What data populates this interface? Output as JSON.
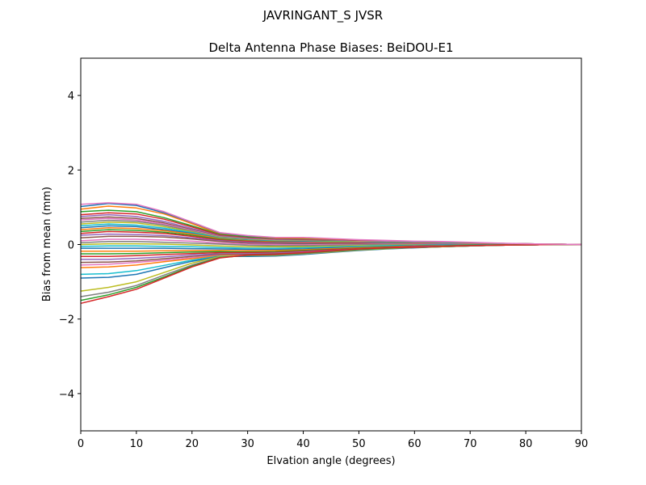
{
  "chart_data": {
    "type": "line",
    "suptitle": "JAVRINGANT_S    JVSR",
    "title": "Delta Antenna Phase Biases: BeiDOU-E1",
    "xlabel": "Elvation angle (degrees)",
    "ylabel": "Bias from mean (mm)",
    "xlim": [
      0,
      90
    ],
    "ylim": [
      -5,
      5
    ],
    "xticks": [
      0,
      10,
      20,
      30,
      40,
      50,
      60,
      70,
      80,
      90
    ],
    "yticks": [
      -4,
      -2,
      0,
      2,
      4
    ],
    "x": [
      0,
      5,
      10,
      15,
      20,
      25,
      30,
      35,
      40,
      45,
      50,
      55,
      60,
      65,
      70,
      75,
      80,
      85,
      90
    ],
    "grid": false,
    "legend": "none",
    "series": [
      {
        "color": "#1f77b4",
        "values": [
          1.02,
          1.1,
          1.05,
          0.85,
          0.58,
          0.3,
          0.22,
          0.18,
          0.18,
          0.15,
          0.12,
          0.1,
          0.08,
          0.07,
          0.05,
          0.03,
          0.02,
          0.01,
          0.0
        ]
      },
      {
        "color": "#ff7f0e",
        "values": [
          0.95,
          1.03,
          0.98,
          0.82,
          0.56,
          0.28,
          0.2,
          0.16,
          0.16,
          0.14,
          0.11,
          0.09,
          0.08,
          0.06,
          0.05,
          0.03,
          0.02,
          0.01,
          0.0
        ]
      },
      {
        "color": "#2ca02c",
        "values": [
          0.88,
          0.92,
          0.88,
          0.72,
          0.5,
          0.27,
          0.2,
          0.15,
          0.14,
          0.12,
          0.1,
          0.09,
          0.07,
          0.06,
          0.05,
          0.03,
          0.02,
          0.01,
          0.0
        ]
      },
      {
        "color": "#d62728",
        "values": [
          0.8,
          0.85,
          0.82,
          0.68,
          0.47,
          0.25,
          0.18,
          0.14,
          0.13,
          0.12,
          0.1,
          0.08,
          0.07,
          0.06,
          0.04,
          0.03,
          0.02,
          0.01,
          0.0
        ]
      },
      {
        "color": "#9467bd",
        "values": [
          0.75,
          0.8,
          0.75,
          0.62,
          0.43,
          0.23,
          0.17,
          0.13,
          0.12,
          0.11,
          0.09,
          0.08,
          0.06,
          0.05,
          0.04,
          0.03,
          0.02,
          0.01,
          0.0
        ]
      },
      {
        "color": "#8c564b",
        "values": [
          0.7,
          0.74,
          0.7,
          0.58,
          0.4,
          0.22,
          0.16,
          0.12,
          0.11,
          0.1,
          0.08,
          0.07,
          0.06,
          0.05,
          0.04,
          0.02,
          0.02,
          0.01,
          0.0
        ]
      },
      {
        "color": "#e377c2",
        "values": [
          0.66,
          0.7,
          0.66,
          0.55,
          0.38,
          0.21,
          0.15,
          0.11,
          0.1,
          0.09,
          0.08,
          0.07,
          0.06,
          0.05,
          0.04,
          0.02,
          0.01,
          0.01,
          0.0
        ]
      },
      {
        "color": "#7f7f7f",
        "values": [
          0.6,
          0.65,
          0.62,
          0.52,
          0.36,
          0.2,
          0.14,
          0.1,
          0.1,
          0.09,
          0.07,
          0.06,
          0.05,
          0.04,
          0.03,
          0.02,
          0.01,
          0.01,
          0.0
        ]
      },
      {
        "color": "#bcbd22",
        "values": [
          0.55,
          0.6,
          0.58,
          0.48,
          0.34,
          0.19,
          0.13,
          0.1,
          0.09,
          0.08,
          0.07,
          0.06,
          0.05,
          0.04,
          0.03,
          0.02,
          0.01,
          0.01,
          0.0
        ]
      },
      {
        "color": "#17becf",
        "values": [
          0.5,
          0.55,
          0.52,
          0.44,
          0.32,
          0.18,
          0.12,
          0.09,
          0.08,
          0.07,
          0.06,
          0.05,
          0.05,
          0.04,
          0.03,
          0.02,
          0.01,
          0.0,
          0.0
        ]
      },
      {
        "color": "#1f77b4",
        "values": [
          0.45,
          0.5,
          0.48,
          0.4,
          0.3,
          0.17,
          0.11,
          0.08,
          0.07,
          0.06,
          0.06,
          0.05,
          0.04,
          0.03,
          0.03,
          0.02,
          0.01,
          0.0,
          0.0
        ]
      },
      {
        "color": "#ff7f0e",
        "values": [
          0.4,
          0.45,
          0.43,
          0.37,
          0.28,
          0.16,
          0.1,
          0.07,
          0.06,
          0.06,
          0.05,
          0.04,
          0.04,
          0.03,
          0.02,
          0.02,
          0.01,
          0.0,
          0.0
        ]
      },
      {
        "color": "#2ca02c",
        "values": [
          0.35,
          0.4,
          0.38,
          0.33,
          0.25,
          0.14,
          0.09,
          0.06,
          0.05,
          0.05,
          0.04,
          0.04,
          0.03,
          0.03,
          0.02,
          0.01,
          0.01,
          0.0,
          0.0
        ]
      },
      {
        "color": "#d62728",
        "values": [
          0.3,
          0.35,
          0.33,
          0.3,
          0.22,
          0.12,
          0.08,
          0.05,
          0.05,
          0.04,
          0.04,
          0.03,
          0.03,
          0.02,
          0.02,
          0.01,
          0.01,
          0.0,
          0.0
        ]
      },
      {
        "color": "#9467bd",
        "values": [
          0.25,
          0.28,
          0.27,
          0.24,
          0.18,
          0.1,
          0.06,
          0.04,
          0.04,
          0.03,
          0.03,
          0.03,
          0.02,
          0.02,
          0.01,
          0.01,
          0.0,
          0.0,
          0.0
        ]
      },
      {
        "color": "#8c564b",
        "values": [
          0.18,
          0.22,
          0.22,
          0.2,
          0.15,
          0.08,
          0.04,
          0.02,
          0.02,
          0.02,
          0.02,
          0.02,
          0.02,
          0.01,
          0.01,
          0.01,
          0.0,
          0.0,
          0.0
        ]
      },
      {
        "color": "#e377c2",
        "values": [
          0.1,
          0.14,
          0.14,
          0.12,
          0.09,
          0.04,
          0.01,
          0.0,
          -0.01,
          0.0,
          0.0,
          0.01,
          0.01,
          0.01,
          0.01,
          0.0,
          0.0,
          0.0,
          0.0
        ]
      },
      {
        "color": "#7f7f7f",
        "values": [
          0.05,
          0.08,
          0.08,
          0.06,
          0.04,
          0.01,
          -0.02,
          -0.03,
          -0.03,
          -0.02,
          -0.01,
          0.0,
          0.0,
          0.0,
          0.0,
          0.0,
          0.0,
          0.0,
          0.0
        ]
      },
      {
        "color": "#bcbd22",
        "values": [
          0.0,
          0.02,
          0.02,
          0.01,
          -0.01,
          -0.04,
          -0.06,
          -0.06,
          -0.06,
          -0.05,
          -0.03,
          -0.02,
          -0.01,
          -0.01,
          0.0,
          0.0,
          0.0,
          0.0,
          0.0
        ]
      },
      {
        "color": "#17becf",
        "values": [
          -0.05,
          -0.04,
          -0.04,
          -0.05,
          -0.06,
          -0.08,
          -0.1,
          -0.1,
          -0.09,
          -0.07,
          -0.05,
          -0.03,
          -0.02,
          -0.01,
          -0.01,
          0.0,
          0.0,
          0.0,
          0.0
        ]
      },
      {
        "color": "#1f77b4",
        "values": [
          -0.1,
          -0.1,
          -0.1,
          -0.1,
          -0.11,
          -0.12,
          -0.13,
          -0.13,
          -0.12,
          -0.09,
          -0.07,
          -0.05,
          -0.03,
          -0.02,
          -0.01,
          -0.01,
          0.0,
          0.0,
          0.0
        ]
      },
      {
        "color": "#ff7f0e",
        "values": [
          -0.18,
          -0.18,
          -0.18,
          -0.17,
          -0.16,
          -0.16,
          -0.17,
          -0.16,
          -0.14,
          -0.11,
          -0.08,
          -0.06,
          -0.04,
          -0.03,
          -0.02,
          -0.01,
          0.0,
          0.0,
          0.0
        ]
      },
      {
        "color": "#2ca02c",
        "values": [
          -0.25,
          -0.25,
          -0.24,
          -0.22,
          -0.2,
          -0.19,
          -0.2,
          -0.19,
          -0.16,
          -0.13,
          -0.1,
          -0.07,
          -0.05,
          -0.03,
          -0.02,
          -0.01,
          -0.01,
          0.0,
          0.0
        ]
      },
      {
        "color": "#d62728",
        "values": [
          -0.32,
          -0.32,
          -0.3,
          -0.27,
          -0.24,
          -0.22,
          -0.22,
          -0.21,
          -0.18,
          -0.14,
          -0.11,
          -0.08,
          -0.05,
          -0.04,
          -0.03,
          -0.01,
          -0.01,
          0.0,
          0.0
        ]
      },
      {
        "color": "#9467bd",
        "values": [
          -0.4,
          -0.4,
          -0.37,
          -0.33,
          -0.28,
          -0.25,
          -0.25,
          -0.23,
          -0.2,
          -0.16,
          -0.12,
          -0.09,
          -0.06,
          -0.04,
          -0.03,
          -0.02,
          -0.01,
          0.0,
          0.0
        ]
      },
      {
        "color": "#8c564b",
        "values": [
          -0.48,
          -0.47,
          -0.44,
          -0.38,
          -0.32,
          -0.27,
          -0.27,
          -0.25,
          -0.22,
          -0.17,
          -0.13,
          -0.1,
          -0.07,
          -0.05,
          -0.03,
          -0.02,
          -0.01,
          0.0,
          0.0
        ]
      },
      {
        "color": "#e377c2",
        "values": [
          -0.55,
          -0.53,
          -0.48,
          -0.42,
          -0.35,
          -0.29,
          -0.29,
          -0.27,
          -0.23,
          -0.18,
          -0.14,
          -0.1,
          -0.07,
          -0.05,
          -0.04,
          -0.02,
          -0.01,
          0.0,
          0.0
        ]
      },
      {
        "color": "#ff7f0e",
        "values": [
          -0.62,
          -0.6,
          -0.55,
          -0.46,
          -0.38,
          -0.3,
          -0.3,
          -0.28,
          -0.24,
          -0.19,
          -0.14,
          -0.11,
          -0.08,
          -0.06,
          -0.04,
          -0.02,
          -0.01,
          0.0,
          0.0
        ]
      },
      {
        "color": "#17becf",
        "values": [
          -0.8,
          -0.78,
          -0.7,
          -0.56,
          -0.42,
          -0.31,
          -0.31,
          -0.3,
          -0.26,
          -0.2,
          -0.15,
          -0.11,
          -0.08,
          -0.06,
          -0.04,
          -0.02,
          -0.01,
          0.0,
          0.0
        ]
      },
      {
        "color": "#1f77b4",
        "values": [
          -0.9,
          -0.88,
          -0.8,
          -0.62,
          -0.45,
          -0.32,
          -0.32,
          -0.31,
          -0.27,
          -0.21,
          -0.16,
          -0.12,
          -0.09,
          -0.06,
          -0.04,
          -0.02,
          -0.01,
          0.0,
          0.0
        ]
      },
      {
        "color": "#bcbd22",
        "values": [
          -1.25,
          -1.15,
          -1.0,
          -0.75,
          -0.5,
          -0.32,
          -0.3,
          -0.29,
          -0.25,
          -0.2,
          -0.15,
          -0.11,
          -0.08,
          -0.06,
          -0.04,
          -0.02,
          -0.01,
          0.0,
          0.0
        ]
      },
      {
        "color": "#7f7f7f",
        "values": [
          -1.4,
          -1.28,
          -1.1,
          -0.82,
          -0.55,
          -0.34,
          -0.3,
          -0.28,
          -0.24,
          -0.19,
          -0.14,
          -0.1,
          -0.08,
          -0.05,
          -0.04,
          -0.02,
          -0.01,
          0.0,
          0.0
        ]
      },
      {
        "color": "#2ca02c",
        "values": [
          -1.5,
          -1.35,
          -1.15,
          -0.87,
          -0.58,
          -0.35,
          -0.29,
          -0.27,
          -0.23,
          -0.18,
          -0.13,
          -0.1,
          -0.07,
          -0.05,
          -0.03,
          -0.02,
          -0.01,
          0.0,
          0.0
        ]
      },
      {
        "color": "#d62728",
        "values": [
          -1.58,
          -1.4,
          -1.2,
          -0.9,
          -0.6,
          -0.36,
          -0.28,
          -0.26,
          -0.22,
          -0.17,
          -0.12,
          -0.09,
          -0.07,
          -0.05,
          -0.03,
          -0.02,
          -0.01,
          0.0,
          0.0
        ]
      },
      {
        "color": "#e377c2",
        "values": [
          1.08,
          1.12,
          1.08,
          0.88,
          0.6,
          0.32,
          0.24,
          0.19,
          0.19,
          0.16,
          0.13,
          0.11,
          0.09,
          0.08,
          0.06,
          0.04,
          0.02,
          0.01,
          0.0
        ]
      }
    ]
  }
}
